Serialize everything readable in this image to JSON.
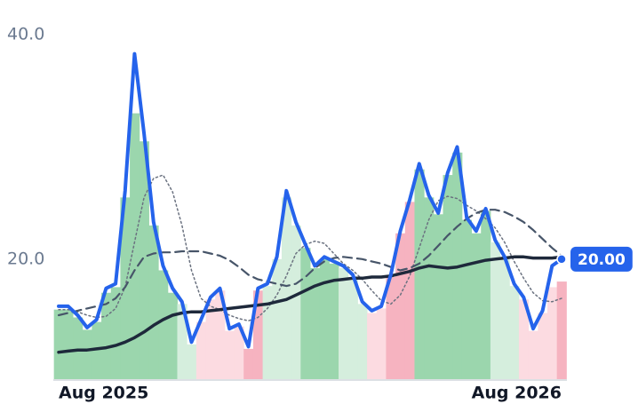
{
  "chart_data": {
    "type": "line",
    "categories": [
      "Aug 2025",
      null,
      null,
      null,
      null,
      null,
      null,
      null,
      null,
      null,
      null,
      null,
      null,
      null,
      null,
      null,
      null,
      null,
      null,
      null,
      null,
      null,
      null,
      null,
      null,
      null,
      null,
      null,
      null,
      null,
      null,
      null,
      null,
      null,
      null,
      null,
      null,
      null,
      null,
      null,
      null,
      null,
      null,
      null,
      null,
      null,
      null,
      null,
      null,
      null,
      null,
      null,
      "Aug 2026",
      null
    ],
    "ylim": [
      9.3,
      43.1
    ],
    "yticks": [
      {
        "value": 20,
        "label": "20.0"
      },
      {
        "value": 40,
        "label": "40.0"
      }
    ],
    "series": [
      {
        "color": "#2563eb",
        "width": 4,
        "dash": "solid",
        "values": [
          15.8,
          15.8,
          15.0,
          13.9,
          14.6,
          17.4,
          17.8,
          26.1,
          38.3,
          31.2,
          23.3,
          19.4,
          17.4,
          16.2,
          12.6,
          14.6,
          16.6,
          17.4,
          13.8,
          14.2,
          12.2,
          17.4,
          17.8,
          20.2,
          26.1,
          23.3,
          21.3,
          19.4,
          20.2,
          19.8,
          19.4,
          18.6,
          16.2,
          15.4,
          15.8,
          18.6,
          22.5,
          25.3,
          28.5,
          25.7,
          24.1,
          27.7,
          30.0,
          23.7,
          22.5,
          24.5,
          21.7,
          20.2,
          17.8,
          16.6,
          13.8,
          15.4,
          19.4,
          20.0
        ],
        "value_labels": [
          null,
          null,
          null,
          null,
          null,
          null,
          null,
          null,
          null,
          null,
          null,
          null,
          null,
          null,
          null,
          null,
          null,
          null,
          null,
          null,
          null,
          null,
          null,
          null,
          null,
          null,
          null,
          null,
          null,
          null,
          null,
          null,
          null,
          null,
          null,
          null,
          null,
          null,
          null,
          null,
          null,
          null,
          null,
          null,
          null,
          null,
          null,
          null,
          null,
          null,
          null,
          null,
          null,
          "20.00"
        ]
      },
      {
        "color": "#1e293b",
        "width": 3.5,
        "dash": "solid",
        "values": [
          11.7,
          11.8,
          11.9,
          11.9,
          12.0,
          12.1,
          12.3,
          12.6,
          13.0,
          13.5,
          14.1,
          14.6,
          15.0,
          15.2,
          15.3,
          15.3,
          15.4,
          15.5,
          15.6,
          15.7,
          15.8,
          15.9,
          16.0,
          16.2,
          16.4,
          16.8,
          17.2,
          17.6,
          17.9,
          18.1,
          18.2,
          18.3,
          18.3,
          18.4,
          18.4,
          18.5,
          18.7,
          18.9,
          19.2,
          19.4,
          19.3,
          19.2,
          19.3,
          19.5,
          19.7,
          19.9,
          20.0,
          20.1,
          20.2,
          20.2,
          20.1,
          20.1,
          20.1,
          20.2
        ]
      },
      {
        "color": "#475569",
        "width": 2.2,
        "dash": "dashed",
        "values": [
          15.0,
          15.2,
          15.4,
          15.6,
          15.8,
          16.0,
          16.5,
          17.5,
          19.0,
          20.2,
          20.5,
          20.6,
          20.6,
          20.7,
          20.7,
          20.7,
          20.5,
          20.3,
          19.9,
          19.3,
          18.6,
          18.2,
          18.0,
          17.8,
          17.6,
          17.8,
          18.4,
          19.2,
          19.8,
          20.1,
          20.2,
          20.1,
          20.0,
          19.8,
          19.6,
          19.3,
          19.0,
          19.2,
          19.6,
          20.3,
          21.2,
          22.1,
          22.9,
          23.6,
          24.1,
          24.4,
          24.4,
          24.2,
          23.8,
          23.3,
          22.6,
          21.8,
          21.0,
          20.3
        ]
      },
      {
        "color": "#6b7280",
        "width": 1.5,
        "dash": "dotted",
        "values": [
          15.5,
          15.5,
          15.3,
          15.0,
          14.8,
          14.9,
          15.6,
          17.5,
          21.5,
          25.5,
          27.2,
          27.5,
          26.0,
          23.0,
          19.0,
          16.5,
          15.8,
          15.5,
          15.0,
          14.7,
          14.5,
          14.8,
          15.6,
          16.8,
          18.5,
          20.5,
          21.3,
          21.6,
          21.4,
          20.5,
          19.6,
          19.0,
          18.2,
          17.2,
          16.3,
          16.0,
          16.8,
          18.5,
          21.0,
          23.5,
          25.2,
          25.6,
          25.4,
          24.8,
          24.3,
          23.6,
          22.8,
          21.5,
          19.8,
          18.3,
          17.0,
          16.3,
          16.2,
          16.5
        ]
      }
    ],
    "bars": {
      "values": [
        15.5,
        15.5,
        14.8,
        13.7,
        14.4,
        17.0,
        17.5,
        25.5,
        33.0,
        30.5,
        23.0,
        19.0,
        17.0,
        16.0,
        12.4,
        14.4,
        16.4,
        17.2,
        13.6,
        14.0,
        12.0,
        17.2,
        17.6,
        20.0,
        25.5,
        23.0,
        21.0,
        19.2,
        20.0,
        19.6,
        19.2,
        18.4,
        16.0,
        15.2,
        15.6,
        18.4,
        22.3,
        25.1,
        28.0,
        25.5,
        24.0,
        27.5,
        29.5,
        23.5,
        22.3,
        24.3,
        21.5,
        20.0,
        17.6,
        16.4,
        13.6,
        15.2,
        17.5,
        18.0
      ],
      "colors": [
        "#9bd6ad",
        "#9bd6ad",
        "#9bd6ad",
        "#9bd6ad",
        "#9bd6ad",
        "#9bd6ad",
        "#9bd6ad",
        "#9bd6ad",
        "#9bd6ad",
        "#9bd6ad",
        "#9bd6ad",
        "#9bd6ad",
        "#9bd6ad",
        "#d5eedd",
        "#d5eedd",
        "#fcdbe1",
        "#fcdbe1",
        "#fcdbe1",
        "#fcdbe1",
        "#fcdbe1",
        "#f6b3c0",
        "#f6b3c0",
        "#d5eedd",
        "#d5eedd",
        "#d5eedd",
        "#d5eedd",
        "#9bd6ad",
        "#9bd6ad",
        "#9bd6ad",
        "#9bd6ad",
        "#d5eedd",
        "#d5eedd",
        "#d5eedd",
        "#fcdbe1",
        "#fcdbe1",
        "#f6b3c0",
        "#f6b3c0",
        "#f6b3c0",
        "#9bd6ad",
        "#9bd6ad",
        "#9bd6ad",
        "#9bd6ad",
        "#9bd6ad",
        "#9bd6ad",
        "#9bd6ad",
        "#9bd6ad",
        "#d5eedd",
        "#d5eedd",
        "#d5eedd",
        "#fcdbe1",
        "#fcdbe1",
        "#fcdbe1",
        "#fcdbe1",
        "#f6b3c0"
      ]
    }
  }
}
